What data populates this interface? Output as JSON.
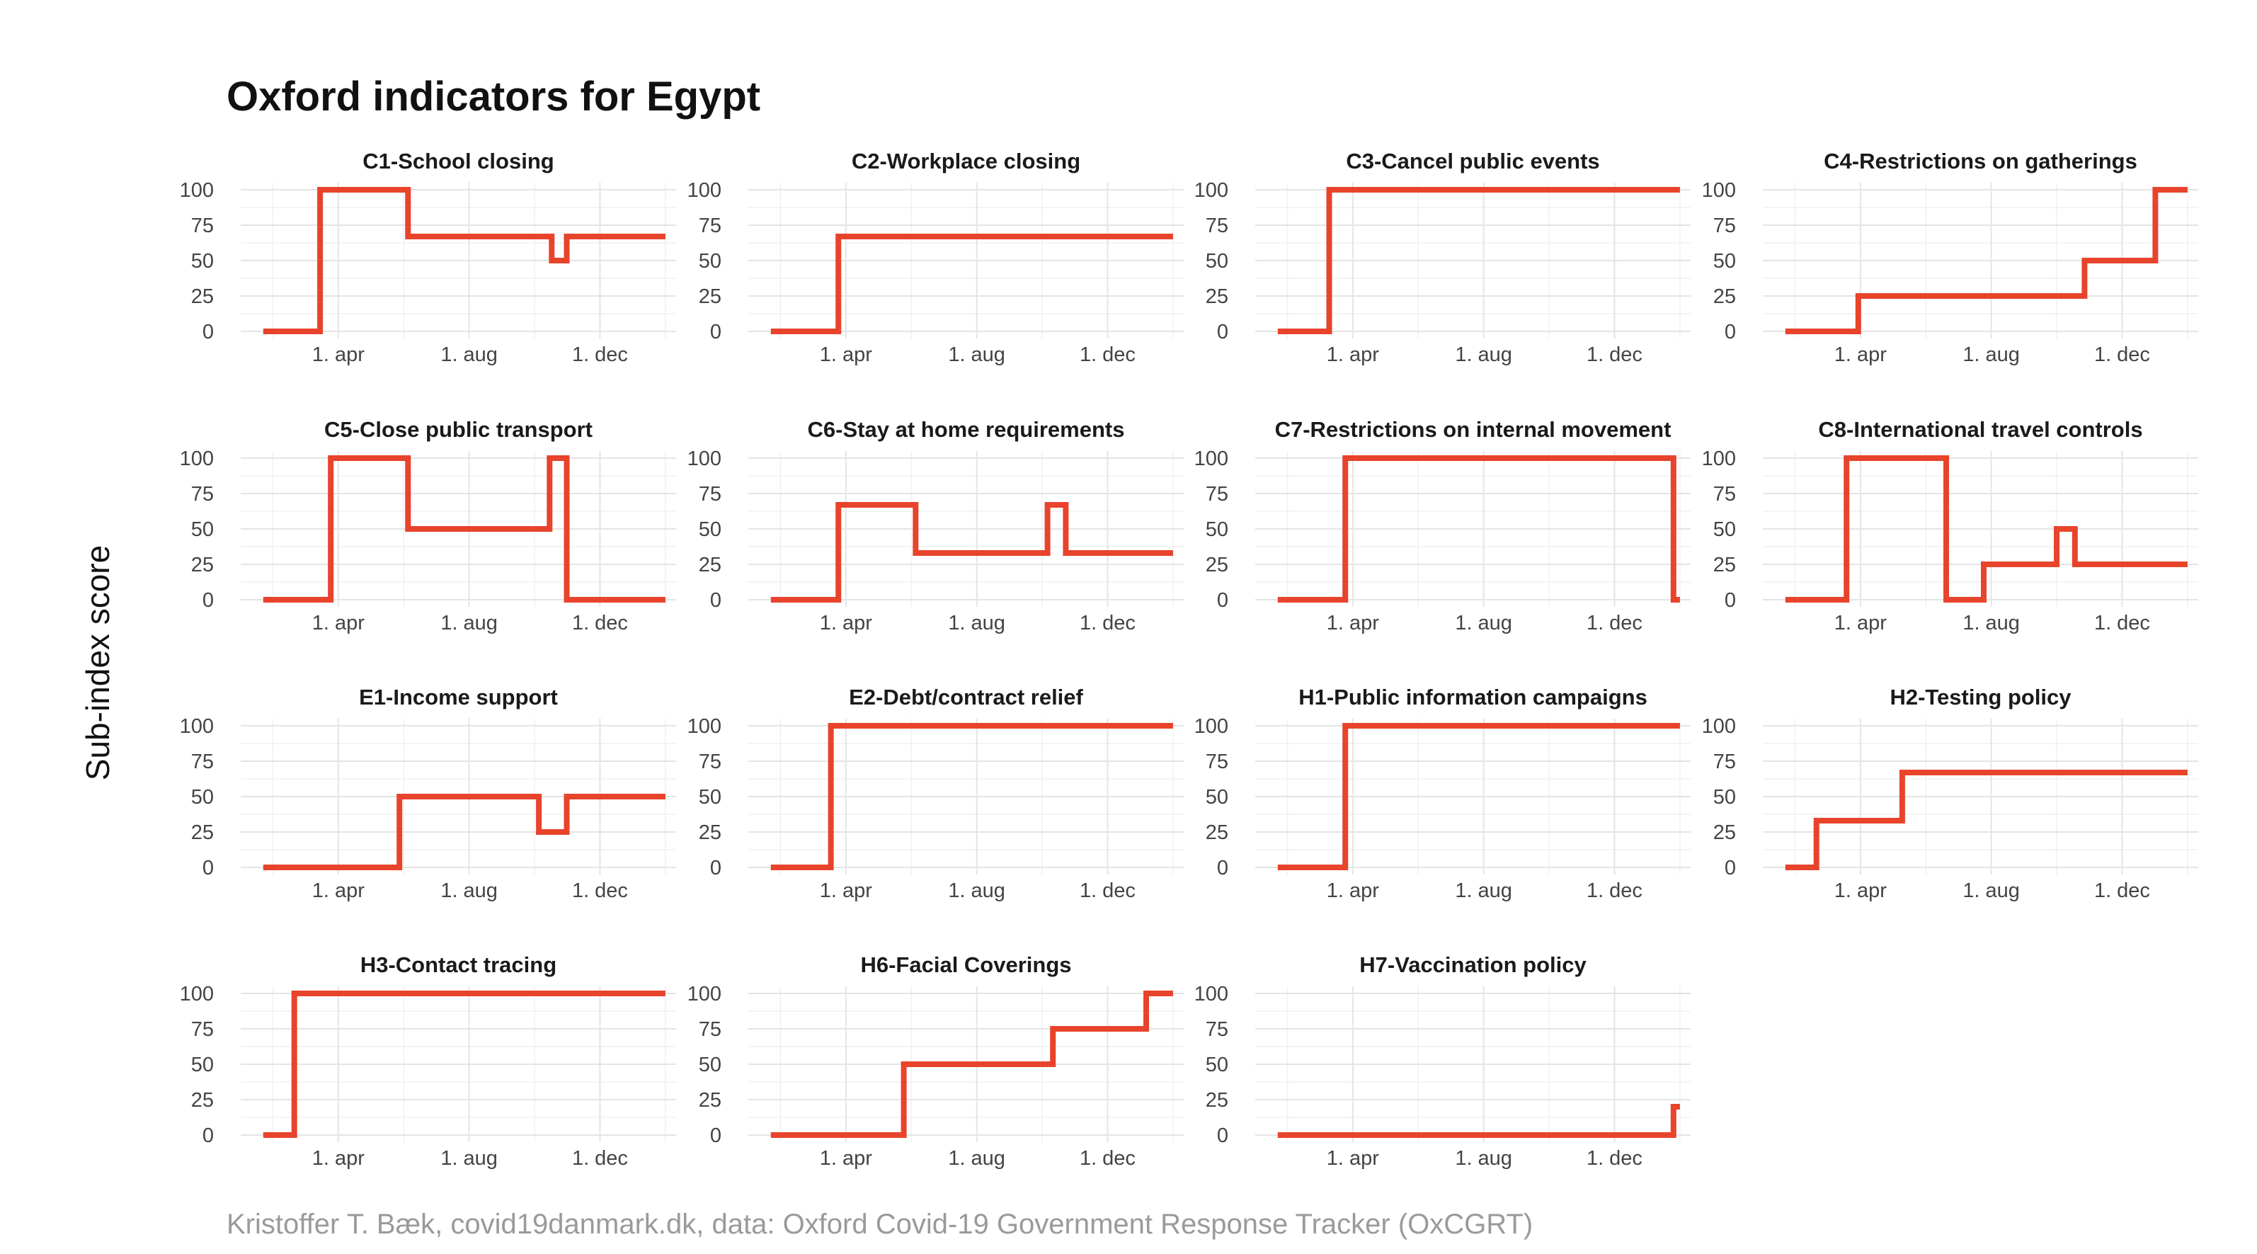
{
  "title": "Oxford indicators for Egypt",
  "ylabel": "Sub-index score",
  "caption": "Kristoffer T. Bæk, covid19danmark.dk, data: Oxford Covid-19 Government Response Tracker (OxCGRT)",
  "colors": {
    "line": "#e8432b",
    "grid": "#e4e4e4",
    "text": "#111111",
    "caption": "#9a9a9a"
  },
  "chart_data": {
    "type": "line",
    "facet_layout": "4 columns, 4 rows",
    "grid": true,
    "ylim": [
      0,
      100
    ],
    "y_ticks": [
      0,
      25,
      50,
      75,
      100
    ],
    "xlim": [
      "2020-01-01",
      "2021-02-10"
    ],
    "x_ticks": [
      {
        "date": "2020-04-01",
        "label": "1. apr"
      },
      {
        "date": "2020-08-01",
        "label": "1. aug"
      },
      {
        "date": "2020-12-01",
        "label": "1. dec"
      }
    ],
    "panels": [
      {
        "title": "C1-School closing",
        "steps": [
          [
            "2020-01-22",
            0
          ],
          [
            "2020-03-15",
            100
          ],
          [
            "2020-06-05",
            67
          ],
          [
            "2020-10-17",
            50
          ],
          [
            "2020-10-31",
            67
          ],
          [
            "2021-01-31",
            67
          ]
        ]
      },
      {
        "title": "C2-Workplace closing",
        "steps": [
          [
            "2020-01-22",
            0
          ],
          [
            "2020-03-25",
            67
          ],
          [
            "2021-01-31",
            67
          ]
        ]
      },
      {
        "title": "C3-Cancel public events",
        "steps": [
          [
            "2020-01-22",
            0
          ],
          [
            "2020-03-10",
            100
          ],
          [
            "2021-01-31",
            100
          ]
        ]
      },
      {
        "title": "C4-Restrictions on gatherings",
        "steps": [
          [
            "2020-01-22",
            0
          ],
          [
            "2020-03-30",
            25
          ],
          [
            "2020-10-27",
            50
          ],
          [
            "2021-01-01",
            100
          ],
          [
            "2021-01-31",
            100
          ]
        ]
      },
      {
        "title": "C5-Close public transport",
        "steps": [
          [
            "2020-01-22",
            0
          ],
          [
            "2020-03-25",
            100
          ],
          [
            "2020-06-05",
            50
          ],
          [
            "2020-10-15",
            100
          ],
          [
            "2020-10-31",
            0
          ],
          [
            "2021-01-31",
            0
          ]
        ]
      },
      {
        "title": "C6-Stay at home requirements",
        "steps": [
          [
            "2020-01-22",
            0
          ],
          [
            "2020-03-25",
            67
          ],
          [
            "2020-06-05",
            33
          ],
          [
            "2020-10-06",
            67
          ],
          [
            "2020-10-23",
            33
          ],
          [
            "2021-01-31",
            33
          ]
        ]
      },
      {
        "title": "C7-Restrictions on internal movement",
        "steps": [
          [
            "2020-01-22",
            0
          ],
          [
            "2020-03-25",
            100
          ],
          [
            "2021-01-25",
            0
          ],
          [
            "2021-01-31",
            0
          ]
        ]
      },
      {
        "title": "C8-International travel controls",
        "steps": [
          [
            "2020-01-22",
            0
          ],
          [
            "2020-03-19",
            100
          ],
          [
            "2020-06-20",
            0
          ],
          [
            "2020-07-25",
            25
          ],
          [
            "2020-10-01",
            50
          ],
          [
            "2020-10-18",
            25
          ],
          [
            "2021-01-31",
            25
          ]
        ]
      },
      {
        "title": "E1-Income support",
        "steps": [
          [
            "2020-01-22",
            0
          ],
          [
            "2020-05-28",
            50
          ],
          [
            "2020-10-05",
            25
          ],
          [
            "2020-10-31",
            50
          ],
          [
            "2021-01-31",
            50
          ]
        ]
      },
      {
        "title": "E2-Debt/contract relief",
        "steps": [
          [
            "2020-01-22",
            0
          ],
          [
            "2020-03-18",
            100
          ],
          [
            "2021-01-31",
            100
          ]
        ]
      },
      {
        "title": "H1-Public information campaigns",
        "steps": [
          [
            "2020-01-22",
            0
          ],
          [
            "2020-03-25",
            100
          ],
          [
            "2021-01-31",
            100
          ]
        ]
      },
      {
        "title": "H2-Testing policy",
        "steps": [
          [
            "2020-01-22",
            0
          ],
          [
            "2020-02-20",
            33
          ],
          [
            "2020-05-10",
            67
          ],
          [
            "2021-01-31",
            67
          ]
        ]
      },
      {
        "title": "H3-Contact tracing",
        "steps": [
          [
            "2020-01-22",
            0
          ],
          [
            "2020-02-20",
            100
          ],
          [
            "2021-01-31",
            100
          ]
        ]
      },
      {
        "title": "H6-Facial Coverings",
        "steps": [
          [
            "2020-01-22",
            0
          ],
          [
            "2020-05-25",
            50
          ],
          [
            "2020-10-11",
            75
          ],
          [
            "2021-01-06",
            100
          ],
          [
            "2021-01-31",
            100
          ]
        ]
      },
      {
        "title": "H7-Vaccination policy",
        "steps": [
          [
            "2020-01-22",
            0
          ],
          [
            "2021-01-25",
            20
          ],
          [
            "2021-01-31",
            20
          ]
        ]
      }
    ]
  }
}
